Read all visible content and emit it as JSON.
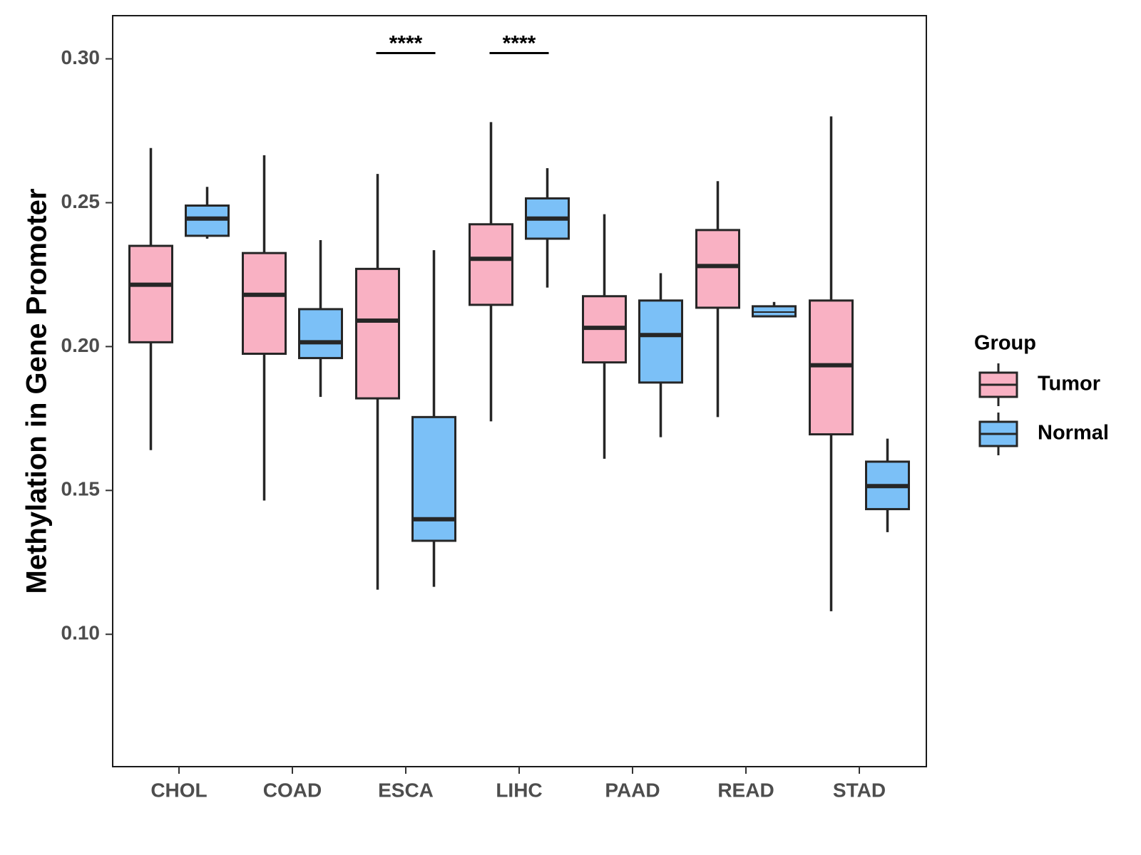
{
  "chart_data": {
    "type": "boxplot",
    "title": "",
    "xlabel": "",
    "ylabel": "Methylation in Gene Promoter",
    "ylim": [
      0.054,
      0.315
    ],
    "yticks": [
      0.1,
      0.15,
      0.2,
      0.25,
      0.3
    ],
    "ytick_labels": [
      "0.10",
      "0.15",
      "0.20",
      "0.25",
      "0.30"
    ],
    "categories": [
      "CHOL",
      "COAD",
      "ESCA",
      "LIHC",
      "PAAD",
      "READ",
      "STAD"
    ],
    "legend": {
      "title": "Group",
      "position": "right",
      "entries": [
        {
          "name": "Tumor",
          "color": "#f9b1c3"
        },
        {
          "name": "Normal",
          "color": "#7bc0f7"
        }
      ]
    },
    "series": [
      {
        "name": "Tumor",
        "color": "#f9b1c3",
        "boxes": [
          {
            "min": 0.164,
            "q1": 0.2015,
            "median": 0.2215,
            "q3": 0.235,
            "max": 0.269
          },
          {
            "min": 0.1465,
            "q1": 0.1975,
            "median": 0.218,
            "q3": 0.2325,
            "max": 0.2665
          },
          {
            "min": 0.1155,
            "q1": 0.182,
            "median": 0.209,
            "q3": 0.227,
            "max": 0.26
          },
          {
            "min": 0.174,
            "q1": 0.2145,
            "median": 0.2305,
            "q3": 0.2425,
            "max": 0.278
          },
          {
            "min": 0.161,
            "q1": 0.1945,
            "median": 0.2065,
            "q3": 0.2175,
            "max": 0.246
          },
          {
            "min": 0.1755,
            "q1": 0.2135,
            "median": 0.228,
            "q3": 0.2405,
            "max": 0.2575
          },
          {
            "min": 0.108,
            "q1": 0.1695,
            "median": 0.1935,
            "q3": 0.216,
            "max": 0.28
          }
        ]
      },
      {
        "name": "Normal",
        "color": "#7bc0f7",
        "boxes": [
          {
            "min": 0.2375,
            "q1": 0.2385,
            "median": 0.2445,
            "q3": 0.249,
            "max": 0.2555
          },
          {
            "min": 0.1825,
            "q1": 0.196,
            "median": 0.2015,
            "q3": 0.213,
            "max": 0.237
          },
          {
            "min": 0.1165,
            "q1": 0.1325,
            "median": 0.14,
            "q3": 0.1755,
            "max": 0.2335
          },
          {
            "min": 0.2205,
            "q1": 0.2375,
            "median": 0.2445,
            "q3": 0.2515,
            "max": 0.262
          },
          {
            "min": 0.1685,
            "q1": 0.1875,
            "median": 0.204,
            "q3": 0.216,
            "max": 0.2255
          },
          {
            "min": 0.2105,
            "q1": 0.2105,
            "median": 0.212,
            "q3": 0.214,
            "max": 0.2155
          },
          {
            "min": 0.1355,
            "q1": 0.1435,
            "median": 0.1515,
            "q3": 0.16,
            "max": 0.168
          }
        ]
      }
    ],
    "annotations": [
      {
        "category": "ESCA",
        "label": "****",
        "y": 0.3025
      },
      {
        "category": "LIHC",
        "label": "****",
        "y": 0.3025
      }
    ]
  }
}
